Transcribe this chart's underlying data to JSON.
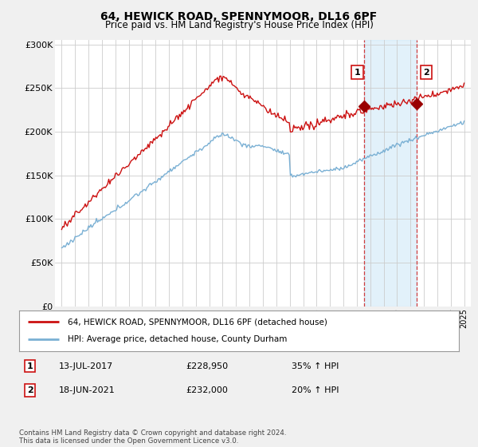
{
  "title": "64, HEWICK ROAD, SPENNYMOOR, DL16 6PF",
  "subtitle": "Price paid vs. HM Land Registry's House Price Index (HPI)",
  "ylabel_ticks": [
    "£0",
    "£50K",
    "£100K",
    "£150K",
    "£200K",
    "£250K",
    "£300K"
  ],
  "ytick_values": [
    0,
    50000,
    100000,
    150000,
    200000,
    250000,
    300000
  ],
  "ylim": [
    0,
    305000
  ],
  "hpi_color": "#7ab0d4",
  "price_color": "#cc1111",
  "marker1_date": 2017.54,
  "marker2_date": 2021.46,
  "marker1_price": 228950,
  "marker2_price": 232000,
  "legend_line1": "64, HEWICK ROAD, SPENNYMOOR, DL16 6PF (detached house)",
  "legend_line2": "HPI: Average price, detached house, County Durham",
  "note1_num": "1",
  "note1_date": "13-JUL-2017",
  "note1_price": "£228,950",
  "note1_pct": "35% ↑ HPI",
  "note2_num": "2",
  "note2_date": "18-JUN-2021",
  "note2_price": "£232,000",
  "note2_pct": "20% ↑ HPI",
  "footer": "Contains HM Land Registry data © Crown copyright and database right 2024.\nThis data is licensed under the Open Government Licence v3.0.",
  "background_color": "#f0f0f0",
  "plot_bg_color": "#ffffff",
  "shade_color": "#d0e8f8"
}
